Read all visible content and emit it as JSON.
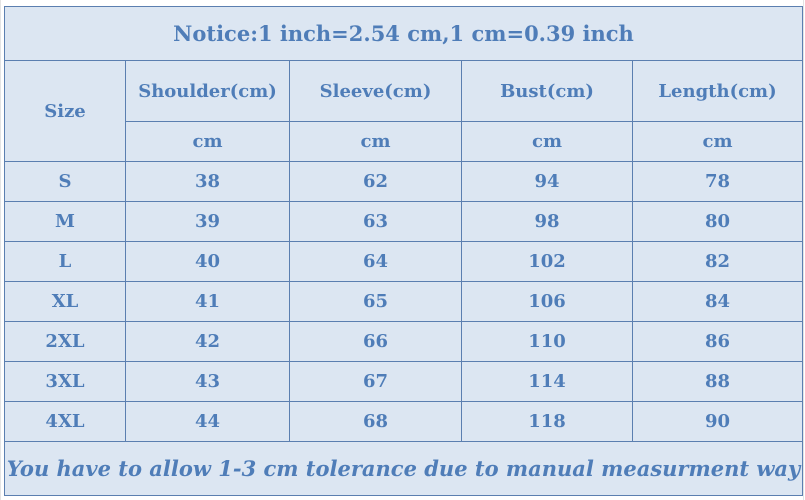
{
  "notice": "Notice:1 inch=2.54 cm,1 cm=0.39 inch",
  "size_header": "Size",
  "columns": [
    "Shoulder(cm)",
    "Sleeve(cm)",
    "Bust(cm)",
    "Length(cm)"
  ],
  "units": [
    "cm",
    "cm",
    "cm",
    "cm"
  ],
  "rows": [
    {
      "size": "S",
      "values": [
        "38",
        "62",
        "94",
        "78"
      ]
    },
    {
      "size": "M",
      "values": [
        "39",
        "63",
        "98",
        "80"
      ]
    },
    {
      "size": "L",
      "values": [
        "40",
        "64",
        "102",
        "82"
      ]
    },
    {
      "size": "XL",
      "values": [
        "41",
        "65",
        "106",
        "84"
      ]
    },
    {
      "size": "2XL",
      "values": [
        "42",
        "66",
        "110",
        "86"
      ]
    },
    {
      "size": "3XL",
      "values": [
        "43",
        "67",
        "114",
        "88"
      ]
    },
    {
      "size": "4XL",
      "values": [
        "44",
        "68",
        "118",
        "90"
      ]
    }
  ],
  "footer": "You have to allow 1-3 cm tolerance due to manual measurment way",
  "colors": {
    "cell_background": "#dce6f2",
    "text": "#4f7db8",
    "border": "#5b7fb0"
  }
}
